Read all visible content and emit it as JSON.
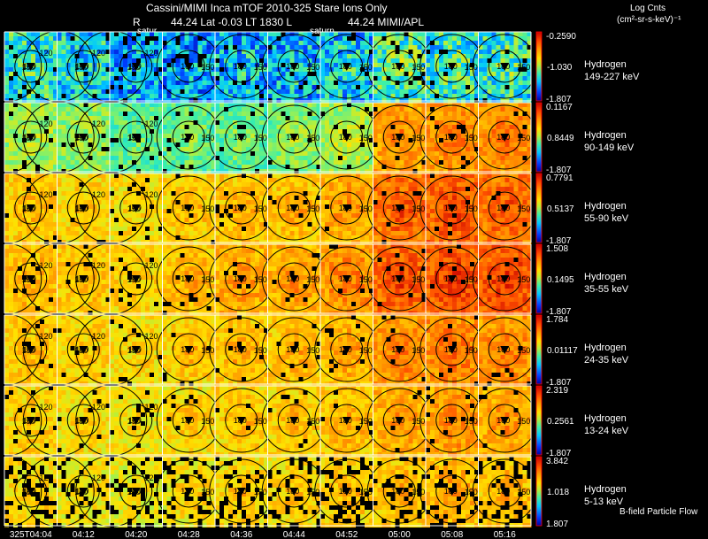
{
  "header": {
    "line1": "Cassini/MIMI Inca mTOF  2010-325   Stare   Ions Only",
    "r_label": "R",
    "line2": "44.24 Lat -0.03 LT 1830 L",
    "l_value": "44.24  MIMI/APL",
    "saturn_left": "satur",
    "saturn_right": "saturn"
  },
  "units": {
    "line1": "Log Cnts",
    "line2": "(cm²-sr-s-keV)⁻¹"
  },
  "footer": {
    "bfield_note": "B-field Particle Flow"
  },
  "colors": {
    "background": "#000000",
    "grid": "#ffffff",
    "contour": "#000000",
    "colorbar_border": "#ff0000"
  },
  "chart_data": {
    "type": "heatmap",
    "time_labels": [
      "325T04:04",
      "04:12",
      "04:20",
      "04:28",
      "04:36",
      "04:44",
      "04:52",
      "05:00",
      "05:08",
      "05:16"
    ],
    "contour_labels": [
      "150",
      "120",
      "90",
      "180"
    ],
    "rows": [
      {
        "species": "Hydrogen",
        "energy": "149-227 keV",
        "cb_max": "-0.2590",
        "cb_mid": "-1.030",
        "cb_min": "-1.807",
        "intensity": [
          0.35,
          0.32,
          0.25,
          0.22,
          0.25,
          0.25,
          0.28,
          0.38,
          0.35,
          0.35
        ]
      },
      {
        "species": "Hydrogen",
        "energy": "90-149 keV",
        "cb_max": "0.1167",
        "cb_mid": "0.8449",
        "cb_min": "-1.807",
        "intensity": [
          0.5,
          0.48,
          0.42,
          0.42,
          0.42,
          0.45,
          0.5,
          0.72,
          0.74,
          0.75
        ]
      },
      {
        "species": "Hydrogen",
        "energy": "55-90 keV",
        "cb_max": "0.7791",
        "cb_mid": "0.5137",
        "cb_min": "-1.807",
        "intensity": [
          0.66,
          0.64,
          0.62,
          0.64,
          0.66,
          0.66,
          0.7,
          0.8,
          0.82,
          0.8
        ]
      },
      {
        "species": "Hydrogen",
        "energy": "35-55 keV",
        "cb_max": "1.508",
        "cb_mid": "0.1495",
        "cb_min": "-1.807",
        "intensity": [
          0.68,
          0.66,
          0.64,
          0.66,
          0.7,
          0.7,
          0.74,
          0.82,
          0.84,
          0.84
        ]
      },
      {
        "species": "Hydrogen",
        "energy": "24-35 keV",
        "cb_max": "1.784",
        "cb_mid": "0.01117",
        "cb_min": "-1.807",
        "intensity": [
          0.66,
          0.64,
          0.62,
          0.64,
          0.66,
          0.66,
          0.68,
          0.74,
          0.76,
          0.74
        ]
      },
      {
        "species": "Hydrogen",
        "energy": "13-24 keV",
        "cb_max": "2.319",
        "cb_mid": "0.2561",
        "cb_min": "-1.807",
        "intensity": [
          0.64,
          0.62,
          0.6,
          0.62,
          0.64,
          0.64,
          0.66,
          0.7,
          0.72,
          0.7
        ]
      },
      {
        "species": "Hydrogen",
        "energy": "5-13 keV",
        "cb_max": "3.842",
        "cb_mid": "1.018",
        "cb_min": "1.807",
        "intensity": [
          0.62,
          0.6,
          0.58,
          0.6,
          0.62,
          0.62,
          0.64,
          0.66,
          0.68,
          0.66
        ]
      }
    ]
  }
}
